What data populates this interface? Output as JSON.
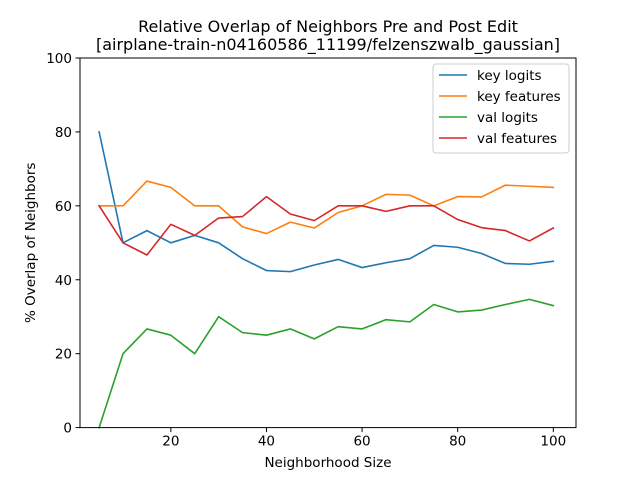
{
  "chart_data": {
    "type": "line",
    "title": "Relative Overlap of Neighbors Pre and Post Edit",
    "subtitle": "[airplane-train-n04160586_11199/felzenszwalb_gaussian]",
    "xlabel": "Neighborhood Size",
    "ylabel": "% Overlap of Neighbors",
    "xlim": [
      1,
      104.75
    ],
    "ylim": [
      0,
      100
    ],
    "xticks": [
      20,
      40,
      60,
      80,
      100
    ],
    "yticks": [
      0,
      20,
      40,
      60,
      80,
      100
    ],
    "grid": false,
    "legend_position": "top-right",
    "x": [
      5,
      10,
      15,
      20,
      25,
      30,
      35,
      40,
      45,
      50,
      55,
      60,
      65,
      70,
      75,
      80,
      85,
      90,
      95,
      100
    ],
    "series": [
      {
        "name": "key logits",
        "color": "#1f77b4",
        "values": [
          80,
          50,
          53.3,
          50,
          52,
          50,
          45.7,
          42.5,
          42.2,
          44,
          45.5,
          43.3,
          44.6,
          45.7,
          49.3,
          48.8,
          47.1,
          44.4,
          44.2,
          45
        ]
      },
      {
        "name": "key features",
        "color": "#ff7f0e",
        "values": [
          60,
          60,
          66.7,
          65,
          60,
          60,
          54.3,
          52.5,
          55.6,
          54,
          58.2,
          60,
          63.1,
          62.9,
          60,
          62.5,
          62.4,
          65.6,
          65.3,
          65
        ]
      },
      {
        "name": "val logits",
        "color": "#2ca02c",
        "values": [
          0,
          20,
          26.7,
          25,
          20,
          30,
          25.7,
          25,
          26.7,
          24,
          27.3,
          26.7,
          29.2,
          28.6,
          33.3,
          31.3,
          31.8,
          33.3,
          34.7,
          33
        ]
      },
      {
        "name": "val features",
        "color": "#d62728",
        "values": [
          60,
          50,
          46.7,
          55,
          52,
          56.7,
          57.1,
          62.5,
          57.8,
          56,
          60,
          60,
          58.5,
          60,
          60,
          56.3,
          54.1,
          53.3,
          50.5,
          54
        ]
      }
    ]
  }
}
